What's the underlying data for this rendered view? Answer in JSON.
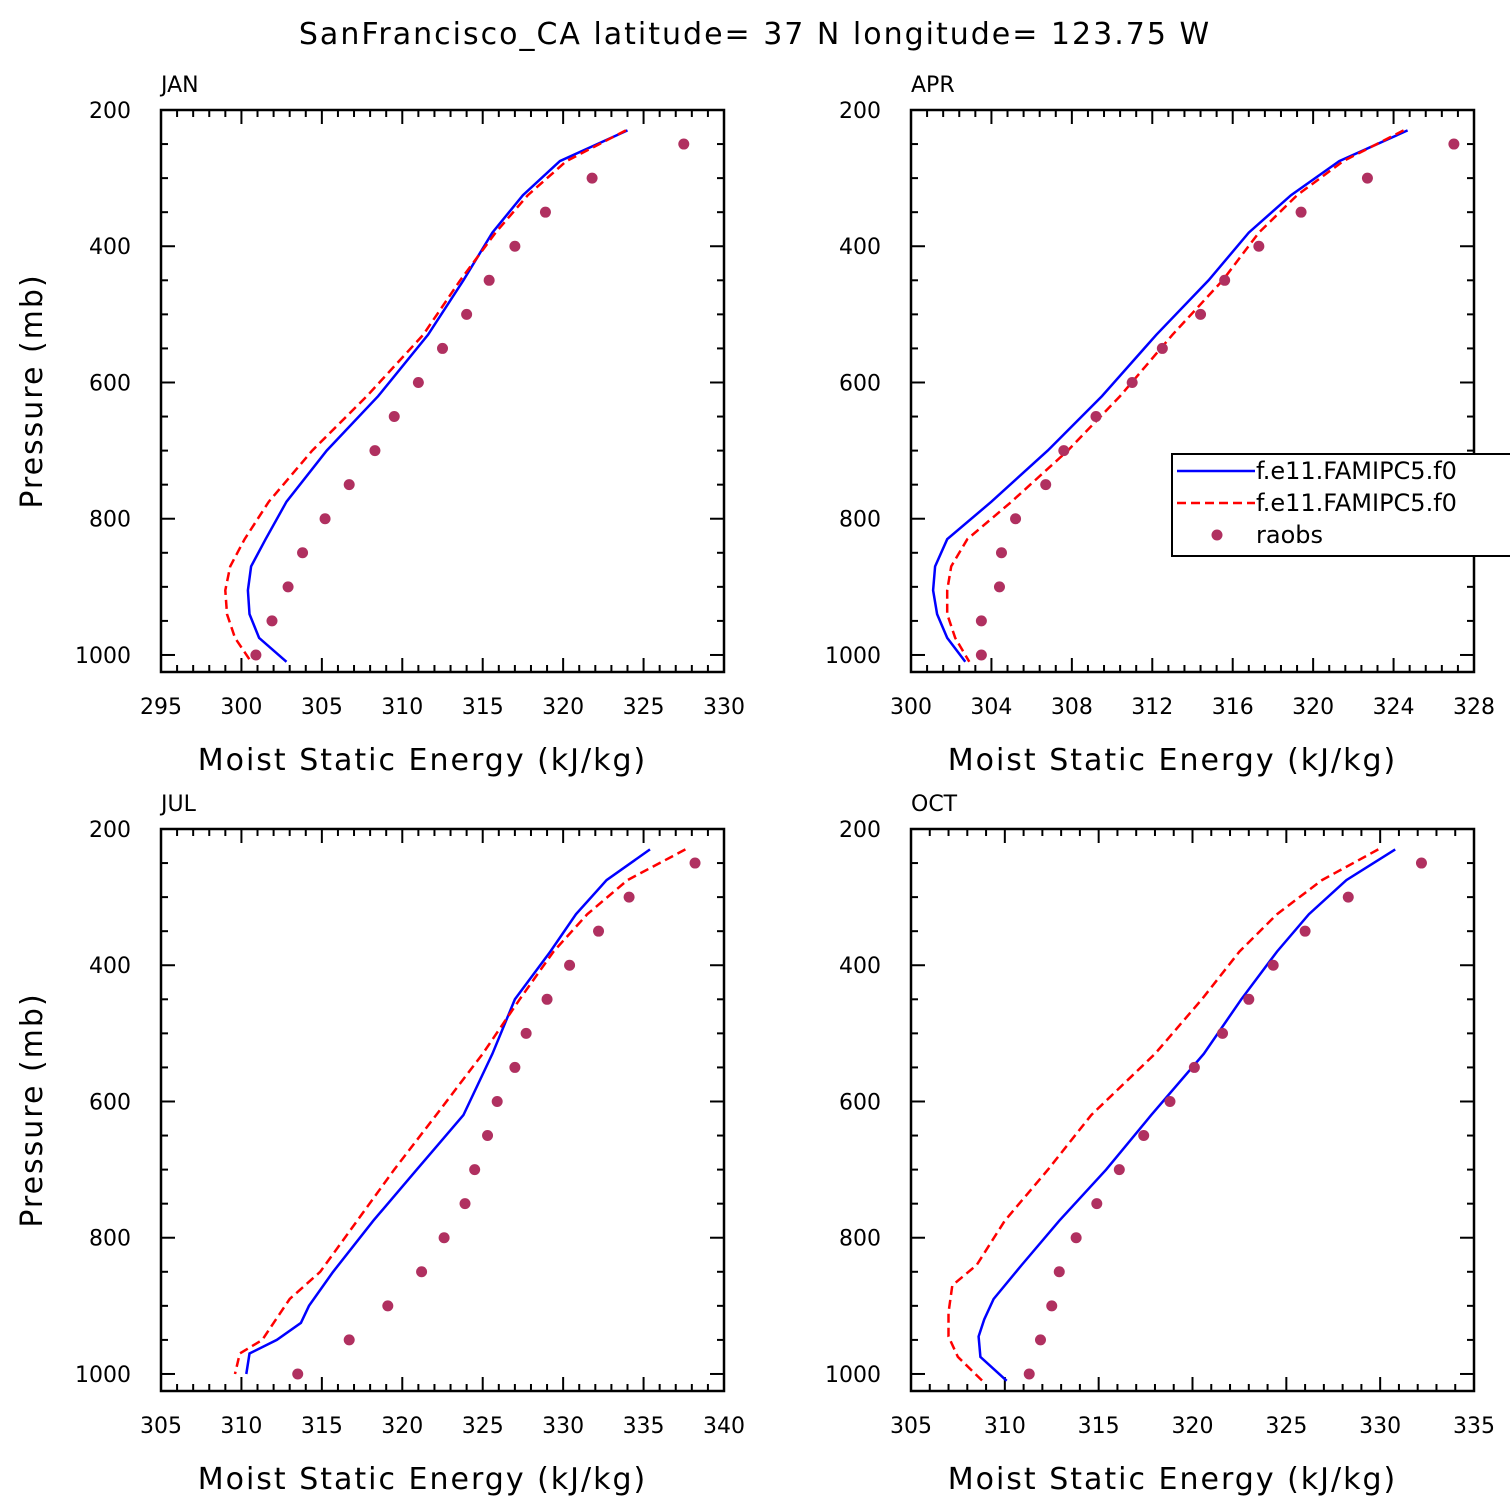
{
  "title": "SanFrancisco_CA  latitude= 37 N longitude= 123.75 W",
  "colors": {
    "model1": "#0000ff",
    "model2": "#ff0000",
    "raobs": "#b03060"
  },
  "legend": {
    "entries": [
      {
        "name": "f.e11.FAMIPC5.f0",
        "style": "solid",
        "color": "#0000ff"
      },
      {
        "name": "f.e11.FAMIPC5.f0",
        "style": "dashed",
        "color": "#ff0000"
      },
      {
        "name": "raobs",
        "style": "dot",
        "color": "#b03060"
      }
    ]
  },
  "chart_data": [
    {
      "type": "line",
      "title": "JAN",
      "xlabel": "Moist Static Energy (kJ/kg)",
      "ylabel": "Pressure (mb)",
      "xlim": [
        295,
        330
      ],
      "ylim": [
        1025,
        200
      ],
      "xticks": [
        295,
        300,
        305,
        310,
        315,
        320,
        325,
        330
      ],
      "yticks": [
        200,
        400,
        600,
        800,
        1000
      ],
      "series": [
        {
          "name": "f.e11.FAMIPC5.f0",
          "style": "solid",
          "color": "#0000ff",
          "x": [
            324.0,
            319.8,
            317.5,
            315.6,
            313.8,
            311.6,
            308.5,
            305.3,
            302.8,
            301.5,
            300.6,
            300.4,
            300.5,
            301.1,
            302.8
          ],
          "y": [
            230,
            275,
            325,
            380,
            450,
            530,
            620,
            700,
            775,
            830,
            870,
            905,
            940,
            975,
            1010
          ]
        },
        {
          "name": "f.e11.FAMIPC5.f0",
          "style": "dashed",
          "color": "#ff0000",
          "x": [
            323.9,
            320.2,
            317.8,
            315.8,
            313.6,
            311.3,
            307.8,
            304.4,
            301.7,
            300.2,
            299.3,
            299.0,
            299.1,
            299.6,
            300.6
          ],
          "y": [
            230,
            275,
            325,
            380,
            450,
            530,
            620,
            700,
            775,
            830,
            870,
            905,
            940,
            975,
            1010
          ]
        },
        {
          "name": "raobs",
          "style": "dot",
          "color": "#b03060",
          "x": [
            327.5,
            321.8,
            318.9,
            317.0,
            315.4,
            314.0,
            312.5,
            311.0,
            309.5,
            308.3,
            306.7,
            305.2,
            303.8,
            302.9,
            301.9,
            300.9
          ],
          "y": [
            250,
            300,
            350,
            400,
            450,
            500,
            550,
            600,
            650,
            700,
            750,
            800,
            850,
            900,
            950,
            1000
          ]
        }
      ]
    },
    {
      "type": "line",
      "title": "APR",
      "xlabel": "Moist Static Energy (kJ/kg)",
      "ylabel": "",
      "xlim": [
        300,
        328
      ],
      "ylim": [
        1025,
        200
      ],
      "xticks": [
        300,
        304,
        308,
        312,
        316,
        320,
        324,
        328
      ],
      "yticks": [
        200,
        400,
        600,
        800,
        1000
      ],
      "legend_position": "right",
      "series": [
        {
          "name": "f.e11.FAMIPC5.f0",
          "style": "solid",
          "color": "#0000ff",
          "x": [
            324.7,
            321.3,
            318.9,
            316.8,
            314.8,
            312.2,
            309.5,
            306.8,
            304.0,
            301.8,
            301.2,
            301.1,
            301.3,
            301.8,
            302.7
          ],
          "y": [
            230,
            275,
            325,
            380,
            450,
            530,
            620,
            700,
            775,
            830,
            870,
            905,
            940,
            975,
            1010
          ]
        },
        {
          "name": "f.e11.FAMIPC5.f0",
          "style": "dashed",
          "color": "#ff0000",
          "x": [
            324.5,
            321.5,
            319.2,
            317.3,
            315.5,
            313.0,
            310.4,
            307.8,
            305.0,
            302.8,
            302.0,
            301.8,
            301.8,
            302.2,
            302.9
          ],
          "y": [
            230,
            275,
            325,
            380,
            450,
            530,
            620,
            700,
            775,
            830,
            870,
            905,
            940,
            975,
            1010
          ]
        },
        {
          "name": "raobs",
          "style": "dot",
          "color": "#b03060",
          "x": [
            327.0,
            322.7,
            319.4,
            317.3,
            315.6,
            314.4,
            312.5,
            311.0,
            309.2,
            307.6,
            306.7,
            305.2,
            304.5,
            304.4,
            303.5,
            303.5
          ],
          "y": [
            250,
            300,
            350,
            400,
            450,
            500,
            550,
            600,
            650,
            700,
            750,
            800,
            850,
            900,
            950,
            1000
          ]
        }
      ]
    },
    {
      "type": "line",
      "title": "JUL",
      "xlabel": "Moist Static Energy (kJ/kg)",
      "ylabel": "Pressure (mb)",
      "xlim": [
        305,
        340
      ],
      "ylim": [
        1025,
        200
      ],
      "xticks": [
        305,
        310,
        315,
        320,
        325,
        330,
        335,
        340
      ],
      "yticks": [
        200,
        400,
        600,
        800,
        1000
      ],
      "series": [
        {
          "name": "f.e11.FAMIPC5.f0",
          "style": "solid",
          "color": "#0000ff",
          "x": [
            335.4,
            332.7,
            330.8,
            329.2,
            327.0,
            325.6,
            323.8,
            320.9,
            318.2,
            315.7,
            314.2,
            313.7,
            312.2,
            310.5,
            310.3
          ],
          "y": [
            230,
            275,
            325,
            380,
            450,
            530,
            620,
            700,
            775,
            850,
            900,
            925,
            950,
            970,
            1000
          ]
        },
        {
          "name": "f.e11.FAMIPC5.f0",
          "style": "dashed",
          "color": "#ff0000",
          "x": [
            337.6,
            334.0,
            331.5,
            329.4,
            327.3,
            325.0,
            322.1,
            319.5,
            317.2,
            314.9,
            313.0,
            312.0,
            311.3,
            309.9,
            309.6
          ],
          "y": [
            230,
            275,
            325,
            380,
            450,
            530,
            620,
            700,
            775,
            850,
            890,
            925,
            950,
            970,
            1000
          ]
        },
        {
          "name": "raobs",
          "style": "dot",
          "color": "#b03060",
          "x": [
            338.2,
            334.1,
            332.2,
            330.4,
            329.0,
            327.7,
            327.0,
            325.9,
            325.3,
            324.5,
            323.9,
            322.6,
            321.2,
            319.1,
            316.7,
            313.5
          ],
          "y": [
            250,
            300,
            350,
            400,
            450,
            500,
            550,
            600,
            650,
            700,
            750,
            800,
            850,
            900,
            950,
            1000
          ]
        }
      ]
    },
    {
      "type": "line",
      "title": "OCT",
      "xlabel": "Moist Static Energy (kJ/kg)",
      "ylabel": "",
      "xlim": [
        305,
        335
      ],
      "ylim": [
        1025,
        200
      ],
      "xticks": [
        305,
        310,
        315,
        320,
        325,
        330,
        335
      ],
      "yticks": [
        200,
        400,
        600,
        800,
        1000
      ],
      "series": [
        {
          "name": "f.e11.FAMIPC5.f0",
          "style": "solid",
          "color": "#0000ff",
          "x": [
            330.8,
            328.2,
            326.2,
            324.5,
            322.6,
            320.6,
            317.8,
            315.4,
            312.9,
            310.9,
            309.4,
            308.9,
            308.6,
            308.7,
            310.1
          ],
          "y": [
            230,
            275,
            325,
            380,
            450,
            530,
            620,
            700,
            775,
            840,
            890,
            920,
            945,
            975,
            1010
          ]
        },
        {
          "name": "f.e11.FAMIPC5.f0",
          "style": "dashed",
          "color": "#ff0000",
          "x": [
            329.9,
            326.9,
            324.5,
            322.5,
            320.5,
            318.0,
            314.6,
            312.3,
            310.0,
            308.5,
            307.2,
            307.0,
            307.0,
            307.5,
            308.8
          ],
          "y": [
            230,
            275,
            325,
            380,
            450,
            530,
            620,
            700,
            775,
            840,
            870,
            910,
            945,
            975,
            1010
          ]
        },
        {
          "name": "raobs",
          "style": "dot",
          "color": "#b03060",
          "x": [
            332.2,
            328.3,
            326.0,
            324.3,
            323.0,
            321.6,
            320.1,
            318.8,
            317.4,
            316.1,
            314.9,
            313.8,
            312.9,
            312.5,
            311.9,
            311.3
          ],
          "y": [
            250,
            300,
            350,
            400,
            450,
            500,
            550,
            600,
            650,
            700,
            750,
            800,
            850,
            900,
            950,
            1000
          ]
        }
      ]
    }
  ]
}
